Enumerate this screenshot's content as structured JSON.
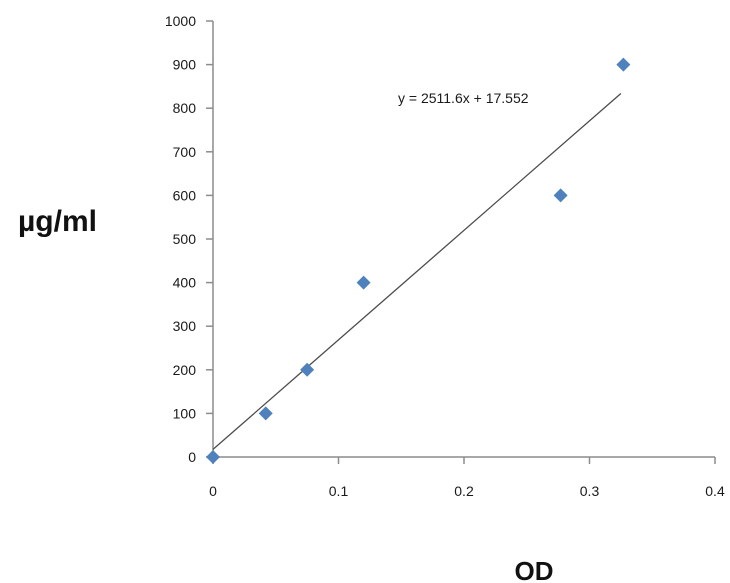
{
  "chart_data": {
    "type": "scatter",
    "title": "",
    "xlabel": "OD",
    "ylabel": "µg/ml",
    "xlim": [
      0,
      0.4
    ],
    "ylim": [
      0,
      1000
    ],
    "x_ticks": [
      "0",
      "0.1",
      "0.2",
      "0.3",
      "0.4"
    ],
    "y_ticks": [
      "0",
      "100",
      "200",
      "300",
      "400",
      "500",
      "600",
      "700",
      "800",
      "900",
      "1000"
    ],
    "grid": false,
    "legend": "none",
    "series": [
      {
        "marker": "diamond",
        "color": "#4f81bd",
        "points": [
          {
            "x": 0.0,
            "y": 0
          },
          {
            "x": 0.042,
            "y": 100
          },
          {
            "x": 0.075,
            "y": 200
          },
          {
            "x": 0.12,
            "y": 400
          },
          {
            "x": 0.277,
            "y": 600
          },
          {
            "x": 0.327,
            "y": 900
          }
        ]
      }
    ],
    "trendline": {
      "type": "linear",
      "slope": 2511.6,
      "intercept": 17.552,
      "x_range": [
        0,
        0.325
      ],
      "color": "#4d4d4d",
      "equation_label": "y = 2511.6x + 17.552"
    }
  }
}
